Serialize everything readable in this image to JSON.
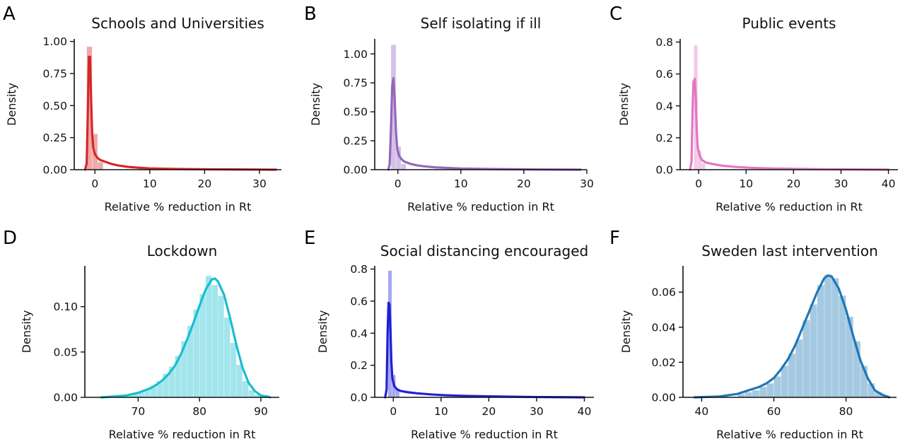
{
  "chart_data": [
    {
      "id": "A",
      "letter": "A",
      "type": "bar",
      "title": "Schools and Universities",
      "xlabel": "Relative % reduction in Rt",
      "ylabel": "Density",
      "color": "#d62728",
      "xlim": [
        -3,
        34
      ],
      "ylim": [
        0,
        1.02
      ],
      "xticks": [
        0,
        10,
        20,
        30
      ],
      "xtick_labels": [
        "0",
        "10",
        "20",
        "30"
      ],
      "yticks": [
        0,
        0.25,
        0.5,
        0.75,
        1.0
      ],
      "ytick_labels": [
        "0.00",
        "0.25",
        "0.50",
        "0.75",
        "1.00"
      ],
      "bins": [
        {
          "x0": -1.5,
          "x1": -0.5,
          "density": 0.96
        },
        {
          "x0": -0.5,
          "x1": 0.5,
          "density": 0.28
        },
        {
          "x0": 0.5,
          "x1": 1.5,
          "density": 0.06
        }
      ],
      "kde": [
        [
          -1.8,
          0
        ],
        [
          -1.5,
          0.05
        ],
        [
          -1.3,
          0.45
        ],
        [
          -1.1,
          0.88
        ],
        [
          -0.9,
          0.88
        ],
        [
          -0.7,
          0.55
        ],
        [
          -0.5,
          0.28
        ],
        [
          -0.3,
          0.17
        ],
        [
          0,
          0.12
        ],
        [
          0.5,
          0.09
        ],
        [
          1,
          0.075
        ],
        [
          2,
          0.06
        ],
        [
          3,
          0.045
        ],
        [
          4,
          0.035
        ],
        [
          6,
          0.022
        ],
        [
          8,
          0.015
        ],
        [
          10,
          0.01
        ],
        [
          13,
          0.007
        ],
        [
          16,
          0.005
        ],
        [
          20,
          0.003
        ],
        [
          25,
          0.002
        ],
        [
          30,
          0.001
        ],
        [
          33,
          0
        ]
      ]
    },
    {
      "id": "B",
      "letter": "B",
      "type": "bar",
      "title": "Self isolating if ill",
      "xlabel": "Relative % reduction in Rt",
      "ylabel": "Density",
      "color": "#9467bd",
      "xlim": [
        -3,
        30
      ],
      "ylim": [
        0,
        1.13
      ],
      "xticks": [
        0,
        10,
        20,
        30
      ],
      "xtick_labels": [
        "0",
        "10",
        "20",
        "30"
      ],
      "yticks": [
        0,
        0.25,
        0.5,
        0.75,
        1.0
      ],
      "ytick_labels": [
        "0.00",
        "0.25",
        "0.50",
        "0.75",
        "1.00"
      ],
      "bins": [
        {
          "x0": -1.1,
          "x1": -0.3,
          "density": 1.08
        },
        {
          "x0": -0.3,
          "x1": 0.5,
          "density": 0.2
        },
        {
          "x0": 0.5,
          "x1": 1.3,
          "density": 0.05
        }
      ],
      "kde": [
        [
          -1.5,
          0
        ],
        [
          -1.3,
          0.05
        ],
        [
          -1.1,
          0.35
        ],
        [
          -0.9,
          0.72
        ],
        [
          -0.7,
          0.79
        ],
        [
          -0.5,
          0.6
        ],
        [
          -0.3,
          0.33
        ],
        [
          -0.1,
          0.18
        ],
        [
          0.2,
          0.12
        ],
        [
          0.6,
          0.09
        ],
        [
          1,
          0.07
        ],
        [
          2,
          0.05
        ],
        [
          3,
          0.038
        ],
        [
          4,
          0.03
        ],
        [
          6,
          0.02
        ],
        [
          8,
          0.015
        ],
        [
          10,
          0.01
        ],
        [
          14,
          0.006
        ],
        [
          18,
          0.004
        ],
        [
          22,
          0.002
        ],
        [
          26,
          0.001
        ],
        [
          29,
          0
        ]
      ]
    },
    {
      "id": "C",
      "letter": "C",
      "type": "bar",
      "title": "Public events",
      "xlabel": "Relative % reduction in Rt",
      "ylabel": "Density",
      "color": "#e377c2",
      "xlim": [
        -3,
        42
      ],
      "ylim": [
        0,
        0.82
      ],
      "xticks": [
        0,
        10,
        20,
        30,
        40
      ],
      "xtick_labels": [
        "0",
        "10",
        "20",
        "30",
        "40"
      ],
      "yticks": [
        0,
        0.2,
        0.4,
        0.6,
        0.8
      ],
      "ytick_labels": [
        "0.0",
        "0.2",
        "0.4",
        "0.6",
        "0.8"
      ],
      "bins": [
        {
          "x0": -1.0,
          "x1": -0.2,
          "density": 0.78
        },
        {
          "x0": -0.2,
          "x1": 0.6,
          "density": 0.12
        },
        {
          "x0": 0.6,
          "x1": 1.4,
          "density": 0.04
        }
      ],
      "kde": [
        [
          -1.8,
          0
        ],
        [
          -1.5,
          0.05
        ],
        [
          -1.3,
          0.35
        ],
        [
          -1.1,
          0.55
        ],
        [
          -0.8,
          0.57
        ],
        [
          -0.6,
          0.45
        ],
        [
          -0.4,
          0.25
        ],
        [
          -0.2,
          0.14
        ],
        [
          0.2,
          0.09
        ],
        [
          0.7,
          0.06
        ],
        [
          1.5,
          0.045
        ],
        [
          3,
          0.035
        ],
        [
          5,
          0.025
        ],
        [
          8,
          0.017
        ],
        [
          11,
          0.012
        ],
        [
          15,
          0.008
        ],
        [
          20,
          0.005
        ],
        [
          25,
          0.003
        ],
        [
          30,
          0.002
        ],
        [
          35,
          0.001
        ],
        [
          40,
          0
        ]
      ]
    },
    {
      "id": "D",
      "letter": "D",
      "type": "bar",
      "title": "Lockdown",
      "xlabel": "Relative % reduction in Rt",
      "ylabel": "Density",
      "color": "#17becf",
      "xlim": [
        62,
        93
      ],
      "ylim": [
        0,
        0.145
      ],
      "xticks": [
        70,
        80,
        90
      ],
      "xtick_labels": [
        "70",
        "80",
        "90"
      ],
      "yticks": [
        0,
        0.05,
        0.1
      ],
      "ytick_labels": [
        "0.00",
        "0.05",
        "0.10"
      ],
      "bins": [
        {
          "x0": 65,
          "x1": 66,
          "density": 0.001
        },
        {
          "x0": 66,
          "x1": 67,
          "density": 0.001
        },
        {
          "x0": 67,
          "x1": 68,
          "density": 0.002
        },
        {
          "x0": 68,
          "x1": 69,
          "density": 0.003
        },
        {
          "x0": 69,
          "x1": 70,
          "density": 0.004
        },
        {
          "x0": 70,
          "x1": 71,
          "density": 0.006
        },
        {
          "x0": 71,
          "x1": 72,
          "density": 0.009
        },
        {
          "x0": 72,
          "x1": 73,
          "density": 0.013
        },
        {
          "x0": 73,
          "x1": 74,
          "density": 0.018
        },
        {
          "x0": 74,
          "x1": 75,
          "density": 0.026
        },
        {
          "x0": 75,
          "x1": 76,
          "density": 0.034
        },
        {
          "x0": 76,
          "x1": 77,
          "density": 0.046
        },
        {
          "x0": 77,
          "x1": 78,
          "density": 0.062
        },
        {
          "x0": 78,
          "x1": 79,
          "density": 0.079
        },
        {
          "x0": 79,
          "x1": 80,
          "density": 0.097
        },
        {
          "x0": 80,
          "x1": 81,
          "density": 0.114
        },
        {
          "x0": 81,
          "x1": 82,
          "density": 0.134
        },
        {
          "x0": 82,
          "x1": 83,
          "density": 0.124
        },
        {
          "x0": 83,
          "x1": 84,
          "density": 0.112
        },
        {
          "x0": 84,
          "x1": 85,
          "density": 0.088
        },
        {
          "x0": 85,
          "x1": 86,
          "density": 0.06
        },
        {
          "x0": 86,
          "x1": 87,
          "density": 0.036
        },
        {
          "x0": 87,
          "x1": 88,
          "density": 0.018
        },
        {
          "x0": 88,
          "x1": 89,
          "density": 0.008
        },
        {
          "x0": 89,
          "x1": 90,
          "density": 0.003
        },
        {
          "x0": 90,
          "x1": 91,
          "density": 0.001
        }
      ],
      "kde": [
        [
          64,
          0
        ],
        [
          66,
          0.001
        ],
        [
          68,
          0.002
        ],
        [
          70,
          0.005
        ],
        [
          72,
          0.01
        ],
        [
          73,
          0.014
        ],
        [
          74,
          0.019
        ],
        [
          75,
          0.026
        ],
        [
          76,
          0.035
        ],
        [
          77,
          0.048
        ],
        [
          78,
          0.064
        ],
        [
          79,
          0.082
        ],
        [
          80,
          0.101
        ],
        [
          81,
          0.119
        ],
        [
          82,
          0.13
        ],
        [
          82.5,
          0.131
        ],
        [
          83,
          0.128
        ],
        [
          84,
          0.113
        ],
        [
          85,
          0.087
        ],
        [
          86,
          0.058
        ],
        [
          87,
          0.033
        ],
        [
          88,
          0.016
        ],
        [
          89,
          0.007
        ],
        [
          90,
          0.002
        ],
        [
          91,
          0.001
        ],
        [
          91.5,
          0
        ]
      ]
    },
    {
      "id": "E",
      "letter": "E",
      "type": "bar",
      "title": "Social distancing encouraged",
      "xlabel": "Relative % reduction in Rt",
      "ylabel": "Density",
      "color": "#1f1fd6",
      "xlim": [
        -3,
        42
      ],
      "ylim": [
        0,
        0.82
      ],
      "xticks": [
        0,
        10,
        20,
        30,
        40
      ],
      "xtick_labels": [
        "0",
        "10",
        "20",
        "30",
        "40"
      ],
      "yticks": [
        0,
        0.2,
        0.4,
        0.6,
        0.8
      ],
      "ytick_labels": [
        "0.0",
        "0.2",
        "0.4",
        "0.6",
        "0.8"
      ],
      "bins": [
        {
          "x0": -1.1,
          "x1": -0.3,
          "density": 0.79
        },
        {
          "x0": -0.3,
          "x1": 0.5,
          "density": 0.14
        },
        {
          "x0": 0.5,
          "x1": 1.3,
          "density": 0.05
        }
      ],
      "kde": [
        [
          -1.7,
          0
        ],
        [
          -1.4,
          0.05
        ],
        [
          -1.2,
          0.4
        ],
        [
          -1.0,
          0.59
        ],
        [
          -0.8,
          0.58
        ],
        [
          -0.6,
          0.42
        ],
        [
          -0.4,
          0.22
        ],
        [
          -0.2,
          0.12
        ],
        [
          0.2,
          0.07
        ],
        [
          0.8,
          0.05
        ],
        [
          1.5,
          0.04
        ],
        [
          3,
          0.032
        ],
        [
          5,
          0.025
        ],
        [
          8,
          0.018
        ],
        [
          11,
          0.013
        ],
        [
          15,
          0.009
        ],
        [
          20,
          0.006
        ],
        [
          25,
          0.004
        ],
        [
          30,
          0.002
        ],
        [
          35,
          0.001
        ],
        [
          40,
          0
        ]
      ]
    },
    {
      "id": "F",
      "letter": "F",
      "type": "bar",
      "title": "Sweden last intervention",
      "xlabel": "Relative % reduction in Rt",
      "ylabel": "Density",
      "color": "#1f77b4",
      "xlim": [
        36,
        94
      ],
      "ylim": [
        0,
        0.075
      ],
      "xticks": [
        40,
        60,
        80
      ],
      "xtick_labels": [
        "40",
        "60",
        "80"
      ],
      "yticks": [
        0,
        0.02,
        0.04,
        0.06
      ],
      "ytick_labels": [
        "0.00",
        "0.02",
        "0.04",
        "0.06"
      ],
      "bins": [
        {
          "x0": 50,
          "x1": 52,
          "density": 0.002
        },
        {
          "x0": 52,
          "x1": 54,
          "density": 0.003
        },
        {
          "x0": 54,
          "x1": 56,
          "density": 0.004
        },
        {
          "x0": 56,
          "x1": 58,
          "density": 0.006
        },
        {
          "x0": 58,
          "x1": 60,
          "density": 0.008
        },
        {
          "x0": 60,
          "x1": 62,
          "density": 0.012
        },
        {
          "x0": 62,
          "x1": 64,
          "density": 0.018
        },
        {
          "x0": 64,
          "x1": 66,
          "density": 0.025
        },
        {
          "x0": 66,
          "x1": 68,
          "density": 0.033
        },
        {
          "x0": 68,
          "x1": 70,
          "density": 0.044
        },
        {
          "x0": 70,
          "x1": 72,
          "density": 0.053
        },
        {
          "x0": 72,
          "x1": 74,
          "density": 0.064
        },
        {
          "x0": 74,
          "x1": 76,
          "density": 0.07
        },
        {
          "x0": 76,
          "x1": 78,
          "density": 0.068
        },
        {
          "x0": 78,
          "x1": 80,
          "density": 0.058
        },
        {
          "x0": 80,
          "x1": 82,
          "density": 0.046
        },
        {
          "x0": 82,
          "x1": 84,
          "density": 0.032
        },
        {
          "x0": 84,
          "x1": 86,
          "density": 0.018
        },
        {
          "x0": 86,
          "x1": 88,
          "density": 0.008
        },
        {
          "x0": 88,
          "x1": 90,
          "density": 0.003
        },
        {
          "x0": 90,
          "x1": 92,
          "density": 0.001
        }
      ],
      "kde": [
        [
          38,
          0
        ],
        [
          45,
          0.0005
        ],
        [
          50,
          0.002
        ],
        [
          53,
          0.004
        ],
        [
          56,
          0.006
        ],
        [
          58,
          0.008
        ],
        [
          60,
          0.011
        ],
        [
          62,
          0.016
        ],
        [
          64,
          0.022
        ],
        [
          66,
          0.03
        ],
        [
          68,
          0.04
        ],
        [
          70,
          0.05
        ],
        [
          72,
          0.06
        ],
        [
          74,
          0.068
        ],
        [
          75,
          0.0695
        ],
        [
          76,
          0.069
        ],
        [
          78,
          0.062
        ],
        [
          80,
          0.05
        ],
        [
          82,
          0.035
        ],
        [
          84,
          0.021
        ],
        [
          86,
          0.011
        ],
        [
          88,
          0.004
        ],
        [
          90,
          0.0015
        ],
        [
          92,
          0
        ]
      ]
    }
  ]
}
